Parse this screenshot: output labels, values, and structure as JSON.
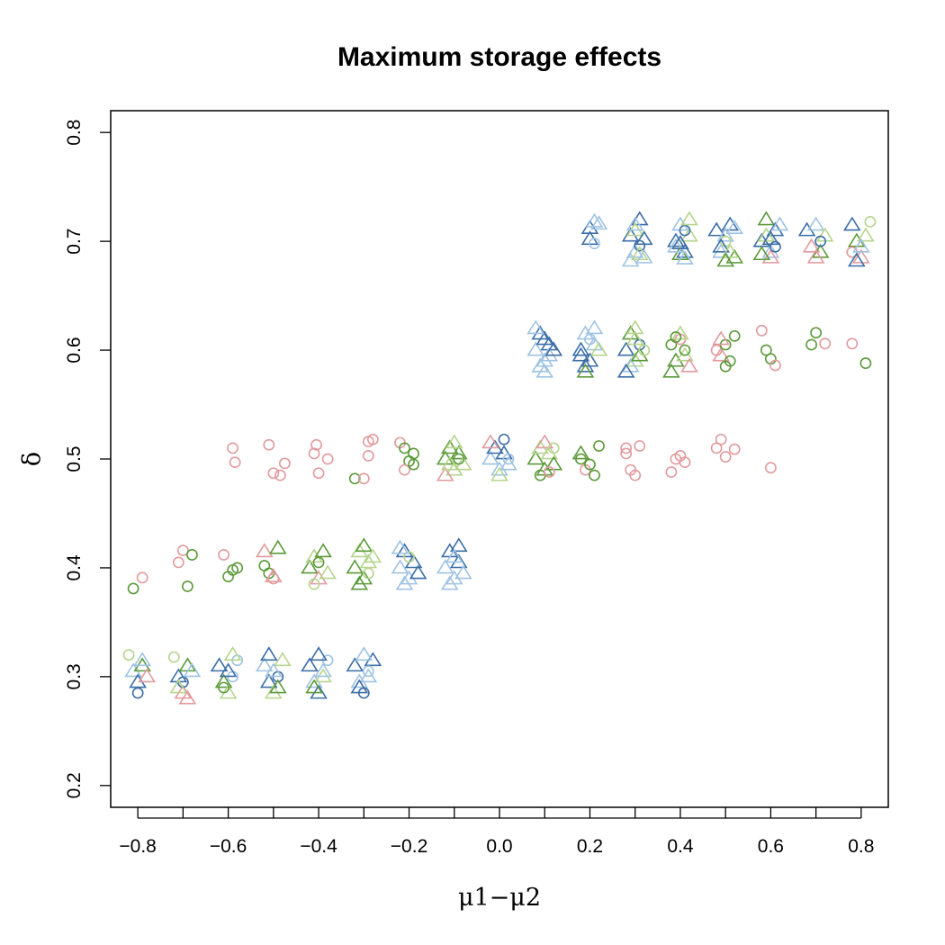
{
  "chart_data": {
    "type": "scatter",
    "title": "Maximum storage effects",
    "xlabel": "μ1−μ2",
    "ylabel": "δ",
    "xlim": [
      -0.86,
      0.86
    ],
    "ylim": [
      0.18,
      0.82
    ],
    "x_ticks": [
      -0.8,
      -0.6,
      -0.4,
      -0.2,
      0.0,
      0.2,
      0.4,
      0.6,
      0.8
    ],
    "x_tick_labels": [
      "−0.8",
      "−0.6",
      "−0.4",
      "−0.2",
      "0.0",
      "0.2",
      "0.4",
      "0.6",
      "0.8"
    ],
    "x_minor_ticks": [
      -0.7,
      -0.5,
      -0.3,
      -0.1,
      0.1,
      0.3,
      0.5,
      0.7
    ],
    "y_ticks": [
      0.2,
      0.3,
      0.4,
      0.5,
      0.6,
      0.7,
      0.8
    ],
    "y_tick_labels": [
      "0.2",
      "0.3",
      "0.4",
      "0.5",
      "0.6",
      "0.7",
      "0.8"
    ],
    "grid": false,
    "legend": "none",
    "colors": [
      "#e39a9d",
      "#5c9a3b",
      "#b5d58c",
      "#3c6ea8",
      "#9fc3e3"
    ],
    "point_shapes": [
      "circle",
      "triangle"
    ],
    "points": [
      [
        0.2,
        0.712,
        3,
        1
      ],
      [
        0.21,
        0.718,
        4,
        1
      ],
      [
        0.2,
        0.702,
        3,
        1
      ],
      [
        0.21,
        0.698,
        4,
        0
      ],
      [
        0.22,
        0.716,
        4,
        1
      ],
      [
        0.29,
        0.705,
        3,
        1
      ],
      [
        0.3,
        0.69,
        4,
        1
      ],
      [
        0.31,
        0.72,
        3,
        1
      ],
      [
        0.32,
        0.685,
        4,
        1
      ],
      [
        0.3,
        0.71,
        2,
        1
      ],
      [
        0.31,
        0.696,
        3,
        0
      ],
      [
        0.29,
        0.682,
        4,
        1
      ],
      [
        0.32,
        0.702,
        3,
        1
      ],
      [
        0.3,
        0.715,
        4,
        1
      ],
      [
        0.31,
        0.688,
        2,
        1
      ],
      [
        0.39,
        0.7,
        3,
        1
      ],
      [
        0.4,
        0.715,
        4,
        1
      ],
      [
        0.41,
        0.69,
        3,
        1
      ],
      [
        0.42,
        0.705,
        2,
        1
      ],
      [
        0.4,
        0.688,
        1,
        1
      ],
      [
        0.41,
        0.71,
        3,
        0
      ],
      [
        0.39,
        0.695,
        4,
        1
      ],
      [
        0.42,
        0.72,
        2,
        1
      ],
      [
        0.4,
        0.698,
        3,
        1
      ],
      [
        0.41,
        0.684,
        4,
        1
      ],
      [
        0.48,
        0.71,
        3,
        1
      ],
      [
        0.49,
        0.69,
        4,
        1
      ],
      [
        0.5,
        0.7,
        2,
        0
      ],
      [
        0.51,
        0.715,
        3,
        1
      ],
      [
        0.52,
        0.685,
        1,
        1
      ],
      [
        0.5,
        0.705,
        4,
        1
      ],
      [
        0.49,
        0.695,
        3,
        1
      ],
      [
        0.51,
        0.69,
        2,
        1
      ],
      [
        0.52,
        0.712,
        4,
        1
      ],
      [
        0.5,
        0.682,
        1,
        1
      ],
      [
        0.58,
        0.7,
        3,
        1
      ],
      [
        0.59,
        0.72,
        1,
        1
      ],
      [
        0.6,
        0.69,
        4,
        1
      ],
      [
        0.61,
        0.71,
        3,
        1
      ],
      [
        0.6,
        0.685,
        0,
        1
      ],
      [
        0.59,
        0.705,
        2,
        1
      ],
      [
        0.61,
        0.695,
        3,
        0
      ],
      [
        0.62,
        0.715,
        4,
        1
      ],
      [
        0.58,
        0.688,
        1,
        1
      ],
      [
        0.6,
        0.702,
        3,
        1
      ],
      [
        0.68,
        0.71,
        3,
        1
      ],
      [
        0.69,
        0.695,
        0,
        1
      ],
      [
        0.7,
        0.715,
        4,
        1
      ],
      [
        0.71,
        0.69,
        1,
        1
      ],
      [
        0.72,
        0.705,
        2,
        1
      ],
      [
        0.7,
        0.685,
        0,
        1
      ],
      [
        0.71,
        0.7,
        3,
        0
      ],
      [
        0.78,
        0.715,
        3,
        1
      ],
      [
        0.79,
        0.7,
        1,
        1
      ],
      [
        0.8,
        0.685,
        0,
        1
      ],
      [
        0.78,
        0.69,
        0,
        0
      ],
      [
        0.81,
        0.705,
        2,
        1
      ],
      [
        0.82,
        0.718,
        2,
        0
      ],
      [
        0.79,
        0.682,
        3,
        1
      ],
      [
        0.8,
        0.695,
        4,
        1
      ],
      [
        0.08,
        0.6,
        4,
        1
      ],
      [
        0.09,
        0.615,
        3,
        1
      ],
      [
        0.1,
        0.59,
        4,
        1
      ],
      [
        0.11,
        0.605,
        3,
        1
      ],
      [
        0.09,
        0.585,
        4,
        1
      ],
      [
        0.1,
        0.61,
        3,
        1
      ],
      [
        0.11,
        0.595,
        4,
        1
      ],
      [
        0.08,
        0.62,
        4,
        1
      ],
      [
        0.12,
        0.6,
        3,
        1
      ],
      [
        0.1,
        0.58,
        4,
        1
      ],
      [
        0.18,
        0.6,
        3,
        1
      ],
      [
        0.19,
        0.615,
        4,
        1
      ],
      [
        0.2,
        0.59,
        3,
        1
      ],
      [
        0.21,
        0.605,
        4,
        1
      ],
      [
        0.19,
        0.585,
        3,
        1
      ],
      [
        0.2,
        0.61,
        4,
        0
      ],
      [
        0.18,
        0.595,
        3,
        1
      ],
      [
        0.21,
        0.62,
        4,
        1
      ],
      [
        0.22,
        0.6,
        2,
        1
      ],
      [
        0.19,
        0.58,
        1,
        1
      ],
      [
        0.28,
        0.6,
        3,
        1
      ],
      [
        0.29,
        0.615,
        1,
        1
      ],
      [
        0.3,
        0.59,
        2,
        1
      ],
      [
        0.31,
        0.605,
        3,
        0
      ],
      [
        0.29,
        0.585,
        4,
        1
      ],
      [
        0.3,
        0.61,
        2,
        1
      ],
      [
        0.31,
        0.595,
        1,
        1
      ],
      [
        0.32,
        0.6,
        2,
        0
      ],
      [
        0.28,
        0.58,
        3,
        1
      ],
      [
        0.3,
        0.62,
        2,
        1
      ],
      [
        0.38,
        0.605,
        1,
        0
      ],
      [
        0.39,
        0.59,
        1,
        1
      ],
      [
        0.4,
        0.61,
        0,
        0
      ],
      [
        0.41,
        0.595,
        2,
        1
      ],
      [
        0.38,
        0.58,
        1,
        1
      ],
      [
        0.4,
        0.615,
        2,
        1
      ],
      [
        0.41,
        0.6,
        1,
        0
      ],
      [
        0.42,
        0.585,
        0,
        1
      ],
      [
        0.39,
        0.612,
        1,
        0
      ],
      [
        0.48,
        0.6,
        0,
        0
      ],
      [
        0.49,
        0.595,
        0,
        1
      ],
      [
        0.5,
        0.605,
        1,
        0
      ],
      [
        0.51,
        0.59,
        1,
        0
      ],
      [
        0.5,
        0.585,
        1,
        0
      ],
      [
        0.49,
        0.61,
        0,
        1
      ],
      [
        0.52,
        0.613,
        1,
        0
      ],
      [
        0.58,
        0.618,
        0,
        0
      ],
      [
        0.59,
        0.6,
        1,
        0
      ],
      [
        0.6,
        0.592,
        1,
        0
      ],
      [
        0.61,
        0.586,
        0,
        0
      ],
      [
        0.69,
        0.605,
        1,
        0
      ],
      [
        0.7,
        0.616,
        1,
        0
      ],
      [
        0.72,
        0.606,
        0,
        0
      ],
      [
        0.78,
        0.606,
        0,
        0
      ],
      [
        0.81,
        0.588,
        1,
        0
      ],
      [
        -0.59,
        0.51,
        0,
        0
      ],
      [
        -0.585,
        0.497,
        0,
        0
      ],
      [
        -0.51,
        0.513,
        0,
        0
      ],
      [
        -0.5,
        0.487,
        0,
        0
      ],
      [
        -0.485,
        0.485,
        0,
        0
      ],
      [
        -0.475,
        0.496,
        0,
        0
      ],
      [
        -0.41,
        0.505,
        0,
        0
      ],
      [
        -0.405,
        0.513,
        0,
        0
      ],
      [
        -0.4,
        0.487,
        0,
        0
      ],
      [
        -0.38,
        0.5,
        0,
        0
      ],
      [
        -0.32,
        0.482,
        1,
        0
      ],
      [
        -0.3,
        0.482,
        0,
        0
      ],
      [
        -0.29,
        0.516,
        0,
        0
      ],
      [
        -0.28,
        0.518,
        0,
        0
      ],
      [
        -0.29,
        0.503,
        0,
        0
      ],
      [
        -0.22,
        0.515,
        0,
        0
      ],
      [
        -0.21,
        0.51,
        1,
        0
      ],
      [
        -0.2,
        0.498,
        1,
        0
      ],
      [
        -0.19,
        0.505,
        1,
        0
      ],
      [
        -0.21,
        0.49,
        0,
        0
      ],
      [
        -0.19,
        0.495,
        1,
        0
      ],
      [
        -0.12,
        0.5,
        1,
        1
      ],
      [
        -0.11,
        0.51,
        1,
        1
      ],
      [
        -0.1,
        0.49,
        2,
        1
      ],
      [
        -0.09,
        0.505,
        1,
        1
      ],
      [
        -0.12,
        0.485,
        0,
        1
      ],
      [
        -0.08,
        0.495,
        2,
        1
      ],
      [
        -0.1,
        0.515,
        2,
        1
      ],
      [
        -0.09,
        0.5,
        1,
        0
      ],
      [
        -0.11,
        0.495,
        2,
        1
      ],
      [
        -0.02,
        0.5,
        4,
        1
      ],
      [
        -0.01,
        0.51,
        3,
        1
      ],
      [
        0.0,
        0.49,
        4,
        1
      ],
      [
        0.01,
        0.505,
        3,
        1
      ],
      [
        0.02,
        0.495,
        4,
        1
      ],
      [
        -0.02,
        0.515,
        0,
        1
      ],
      [
        0.0,
        0.485,
        2,
        1
      ],
      [
        0.01,
        0.518,
        3,
        0
      ],
      [
        0.02,
        0.5,
        4,
        0
      ],
      [
        0.08,
        0.5,
        1,
        1
      ],
      [
        0.09,
        0.51,
        2,
        1
      ],
      [
        0.1,
        0.49,
        1,
        1
      ],
      [
        0.11,
        0.505,
        2,
        1
      ],
      [
        0.09,
        0.485,
        1,
        0
      ],
      [
        0.1,
        0.515,
        0,
        1
      ],
      [
        0.12,
        0.495,
        1,
        1
      ],
      [
        0.11,
        0.488,
        0,
        0
      ],
      [
        0.12,
        0.51,
        2,
        0
      ],
      [
        0.18,
        0.5,
        1,
        0
      ],
      [
        0.19,
        0.49,
        0,
        0
      ],
      [
        0.2,
        0.495,
        1,
        0
      ],
      [
        0.21,
        0.485,
        1,
        0
      ],
      [
        0.22,
        0.512,
        1,
        0
      ],
      [
        0.18,
        0.505,
        1,
        1
      ],
      [
        0.28,
        0.51,
        0,
        0
      ],
      [
        0.29,
        0.49,
        0,
        0
      ],
      [
        0.31,
        0.512,
        0,
        0
      ],
      [
        0.3,
        0.485,
        0,
        0
      ],
      [
        0.28,
        0.505,
        0,
        0
      ],
      [
        0.38,
        0.488,
        0,
        0
      ],
      [
        0.39,
        0.5,
        0,
        0
      ],
      [
        0.4,
        0.503,
        0,
        0
      ],
      [
        0.41,
        0.497,
        0,
        0
      ],
      [
        0.48,
        0.51,
        0,
        0
      ],
      [
        0.49,
        0.518,
        0,
        0
      ],
      [
        0.5,
        0.502,
        0,
        0
      ],
      [
        0.52,
        0.509,
        0,
        0
      ],
      [
        0.6,
        0.492,
        0,
        0
      ],
      [
        -0.81,
        0.381,
        1,
        0
      ],
      [
        -0.79,
        0.391,
        0,
        0
      ],
      [
        -0.71,
        0.405,
        0,
        0
      ],
      [
        -0.7,
        0.416,
        0,
        0
      ],
      [
        -0.69,
        0.383,
        1,
        0
      ],
      [
        -0.68,
        0.412,
        1,
        0
      ],
      [
        -0.61,
        0.412,
        0,
        0
      ],
      [
        -0.6,
        0.392,
        1,
        0
      ],
      [
        -0.59,
        0.398,
        1,
        0
      ],
      [
        -0.58,
        0.4,
        1,
        0
      ],
      [
        -0.52,
        0.402,
        1,
        0
      ],
      [
        -0.51,
        0.395,
        1,
        0
      ],
      [
        -0.5,
        0.39,
        0,
        0
      ],
      [
        -0.52,
        0.415,
        0,
        1
      ],
      [
        -0.49,
        0.418,
        1,
        1
      ],
      [
        -0.5,
        0.392,
        0,
        1
      ],
      [
        -0.42,
        0.4,
        1,
        1
      ],
      [
        -0.41,
        0.41,
        2,
        1
      ],
      [
        -0.4,
        0.39,
        0,
        1
      ],
      [
        -0.39,
        0.415,
        1,
        1
      ],
      [
        -0.41,
        0.385,
        2,
        0
      ],
      [
        -0.4,
        0.405,
        1,
        0
      ],
      [
        -0.38,
        0.395,
        2,
        1
      ],
      [
        -0.32,
        0.4,
        1,
        1
      ],
      [
        -0.31,
        0.415,
        2,
        1
      ],
      [
        -0.3,
        0.39,
        1,
        1
      ],
      [
        -0.29,
        0.405,
        2,
        1
      ],
      [
        -0.31,
        0.385,
        1,
        1
      ],
      [
        -0.3,
        0.42,
        1,
        1
      ],
      [
        -0.29,
        0.395,
        2,
        0
      ],
      [
        -0.28,
        0.41,
        2,
        1
      ],
      [
        -0.22,
        0.4,
        4,
        1
      ],
      [
        -0.21,
        0.415,
        3,
        1
      ],
      [
        -0.2,
        0.39,
        4,
        1
      ],
      [
        -0.19,
        0.405,
        3,
        1
      ],
      [
        -0.21,
        0.385,
        4,
        1
      ],
      [
        -0.2,
        0.41,
        2,
        0
      ],
      [
        -0.18,
        0.395,
        3,
        1
      ],
      [
        -0.22,
        0.418,
        4,
        1
      ],
      [
        -0.12,
        0.4,
        4,
        1
      ],
      [
        -0.11,
        0.415,
        3,
        1
      ],
      [
        -0.1,
        0.39,
        4,
        1
      ],
      [
        -0.09,
        0.405,
        3,
        1
      ],
      [
        -0.08,
        0.395,
        4,
        1
      ],
      [
        -0.11,
        0.385,
        4,
        1
      ],
      [
        -0.09,
        0.42,
        3,
        1
      ],
      [
        -0.1,
        0.41,
        4,
        1
      ],
      [
        -0.82,
        0.32,
        2,
        0
      ],
      [
        -0.81,
        0.305,
        4,
        1
      ],
      [
        -0.8,
        0.295,
        3,
        1
      ],
      [
        -0.79,
        0.31,
        1,
        1
      ],
      [
        -0.8,
        0.285,
        3,
        0
      ],
      [
        -0.78,
        0.3,
        0,
        1
      ],
      [
        -0.79,
        0.315,
        4,
        1
      ],
      [
        -0.72,
        0.318,
        2,
        0
      ],
      [
        -0.71,
        0.3,
        3,
        1
      ],
      [
        -0.7,
        0.285,
        0,
        1
      ],
      [
        -0.69,
        0.31,
        1,
        1
      ],
      [
        -0.7,
        0.295,
        3,
        0
      ],
      [
        -0.68,
        0.305,
        4,
        1
      ],
      [
        -0.71,
        0.29,
        2,
        1
      ],
      [
        -0.69,
        0.28,
        0,
        1
      ],
      [
        -0.62,
        0.31,
        3,
        1
      ],
      [
        -0.61,
        0.295,
        1,
        1
      ],
      [
        -0.6,
        0.285,
        2,
        1
      ],
      [
        -0.59,
        0.3,
        4,
        0
      ],
      [
        -0.58,
        0.315,
        4,
        0
      ],
      [
        -0.6,
        0.305,
        3,
        1
      ],
      [
        -0.61,
        0.29,
        1,
        0
      ],
      [
        -0.59,
        0.32,
        2,
        1
      ],
      [
        -0.52,
        0.31,
        4,
        1
      ],
      [
        -0.51,
        0.295,
        3,
        1
      ],
      [
        -0.5,
        0.285,
        2,
        1
      ],
      [
        -0.49,
        0.3,
        3,
        0
      ],
      [
        -0.48,
        0.315,
        2,
        1
      ],
      [
        -0.5,
        0.305,
        4,
        1
      ],
      [
        -0.51,
        0.32,
        3,
        1
      ],
      [
        -0.49,
        0.29,
        1,
        1
      ],
      [
        -0.42,
        0.31,
        3,
        1
      ],
      [
        -0.41,
        0.295,
        4,
        1
      ],
      [
        -0.4,
        0.285,
        3,
        1
      ],
      [
        -0.39,
        0.3,
        2,
        1
      ],
      [
        -0.38,
        0.315,
        4,
        0
      ],
      [
        -0.4,
        0.32,
        3,
        1
      ],
      [
        -0.41,
        0.29,
        1,
        1
      ],
      [
        -0.39,
        0.305,
        4,
        1
      ],
      [
        -0.32,
        0.31,
        3,
        1
      ],
      [
        -0.31,
        0.295,
        4,
        1
      ],
      [
        -0.3,
        0.285,
        3,
        0
      ],
      [
        -0.29,
        0.3,
        4,
        1
      ],
      [
        -0.28,
        0.315,
        3,
        1
      ],
      [
        -0.3,
        0.32,
        4,
        1
      ],
      [
        -0.31,
        0.29,
        3,
        1
      ],
      [
        -0.29,
        0.305,
        4,
        0
      ]
    ]
  }
}
